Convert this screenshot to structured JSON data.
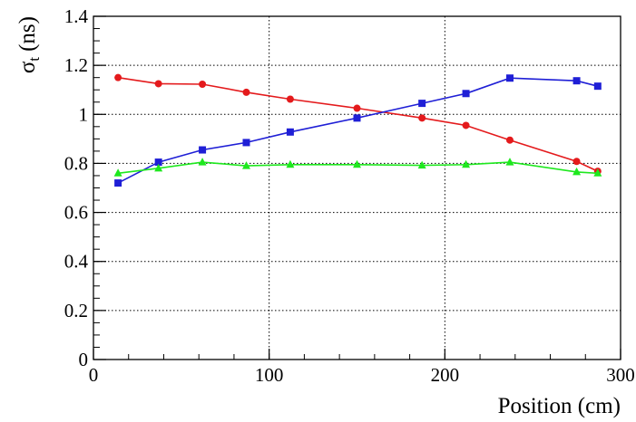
{
  "chart_data": {
    "type": "line",
    "xlabel": "Position (cm)",
    "ylabel_main": "σ",
    "ylabel_sub": "t",
    "ylabel_unit": "(ns)",
    "xlim": [
      0,
      300
    ],
    "ylim": [
      0,
      1.4
    ],
    "xticks": [
      0,
      100,
      200,
      300
    ],
    "xtick_labels": [
      "0",
      "100",
      "200",
      "300"
    ],
    "yticks": [
      0,
      0.2,
      0.4,
      0.6,
      0.8,
      1.0,
      1.2,
      1.4
    ],
    "ytick_labels": [
      "0",
      "0.2",
      "0.4",
      "0.6",
      "0.8",
      "1",
      "1.2",
      "1.4"
    ],
    "grid": true,
    "series": [
      {
        "color": "#e41a1c",
        "marker": "circle",
        "points": [
          [
            14,
            1.15
          ],
          [
            37,
            1.125
          ],
          [
            62,
            1.123
          ],
          [
            87,
            1.09
          ],
          [
            112,
            1.062
          ],
          [
            150,
            1.025
          ],
          [
            187,
            0.985
          ],
          [
            212,
            0.955
          ],
          [
            237,
            0.895
          ],
          [
            275,
            0.808
          ],
          [
            287,
            0.768
          ]
        ]
      },
      {
        "color": "#1f1fd6",
        "marker": "square",
        "points": [
          [
            14,
            0.72
          ],
          [
            37,
            0.805
          ],
          [
            62,
            0.855
          ],
          [
            87,
            0.885
          ],
          [
            112,
            0.928
          ],
          [
            150,
            0.985
          ],
          [
            187,
            1.045
          ],
          [
            212,
            1.085
          ],
          [
            237,
            1.148
          ],
          [
            275,
            1.137
          ],
          [
            287,
            1.115
          ]
        ]
      },
      {
        "color": "#1ee81e",
        "marker": "triangle",
        "points": [
          [
            14,
            0.76
          ],
          [
            37,
            0.78
          ],
          [
            62,
            0.805
          ],
          [
            87,
            0.79
          ],
          [
            112,
            0.795
          ],
          [
            150,
            0.795
          ],
          [
            187,
            0.792
          ],
          [
            212,
            0.795
          ],
          [
            237,
            0.805
          ],
          [
            275,
            0.765
          ],
          [
            287,
            0.76
          ]
        ]
      }
    ]
  }
}
